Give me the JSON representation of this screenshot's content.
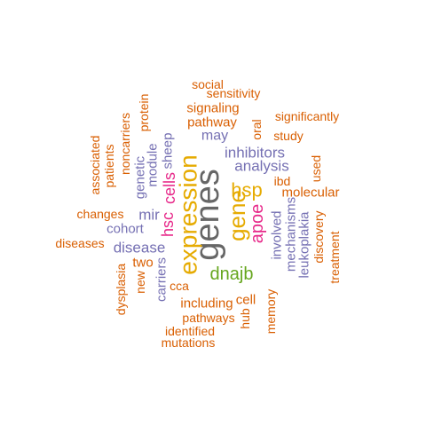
{
  "palette": {
    "orange": "#D95F02",
    "purple": "#7570B3",
    "magenta": "#E7298A",
    "green": "#66A61E",
    "gold": "#E6AB02",
    "gray": "#666666"
  },
  "words": [
    {
      "text": "genes",
      "color": "gray"
    },
    {
      "text": "expression",
      "color": "gold"
    },
    {
      "text": "gene",
      "color": "gold"
    },
    {
      "text": "hsp",
      "color": "gold"
    },
    {
      "text": "apoe",
      "color": "magenta"
    },
    {
      "text": "dnajb",
      "color": "green"
    },
    {
      "text": "cells",
      "color": "magenta"
    },
    {
      "text": "hsc",
      "color": "magenta"
    },
    {
      "text": "analysis",
      "color": "purple"
    },
    {
      "text": "inhibitors",
      "color": "purple"
    },
    {
      "text": "disease",
      "color": "purple"
    },
    {
      "text": "mir",
      "color": "purple"
    },
    {
      "text": "may",
      "color": "purple"
    },
    {
      "text": "cohort",
      "color": "purple"
    },
    {
      "text": "molecular",
      "color": "orange"
    },
    {
      "text": "pathway",
      "color": "orange"
    },
    {
      "text": "signaling",
      "color": "orange"
    },
    {
      "text": "sheep",
      "color": "purple"
    },
    {
      "text": "module",
      "color": "purple"
    },
    {
      "text": "genetic",
      "color": "purple"
    },
    {
      "text": "involved",
      "color": "purple"
    },
    {
      "text": "mechanisms",
      "color": "purple"
    },
    {
      "text": "leukoplakia",
      "color": "purple"
    },
    {
      "text": "carriers",
      "color": "purple"
    },
    {
      "text": "two",
      "color": "orange"
    },
    {
      "text": "including",
      "color": "orange"
    },
    {
      "text": "cell",
      "color": "orange"
    },
    {
      "text": "cca",
      "color": "orange"
    },
    {
      "text": "social",
      "color": "orange"
    },
    {
      "text": "sensitivity",
      "color": "orange"
    },
    {
      "text": "significantly",
      "color": "orange"
    },
    {
      "text": "study",
      "color": "orange"
    },
    {
      "text": "oral",
      "color": "orange"
    },
    {
      "text": "ibd",
      "color": "orange"
    },
    {
      "text": "used",
      "color": "orange"
    },
    {
      "text": "protein",
      "color": "orange"
    },
    {
      "text": "noncarriers",
      "color": "orange"
    },
    {
      "text": "patients",
      "color": "orange"
    },
    {
      "text": "associated",
      "color": "orange"
    },
    {
      "text": "changes",
      "color": "orange"
    },
    {
      "text": "diseases",
      "color": "orange"
    },
    {
      "text": "discovery",
      "color": "orange"
    },
    {
      "text": "treatment",
      "color": "orange"
    },
    {
      "text": "memory",
      "color": "orange"
    },
    {
      "text": "hub",
      "color": "orange"
    },
    {
      "text": "pathways",
      "color": "orange"
    },
    {
      "text": "identified",
      "color": "orange"
    },
    {
      "text": "mutations",
      "color": "orange"
    },
    {
      "text": "new",
      "color": "orange"
    },
    {
      "text": "dysplasia",
      "color": "orange"
    }
  ]
}
